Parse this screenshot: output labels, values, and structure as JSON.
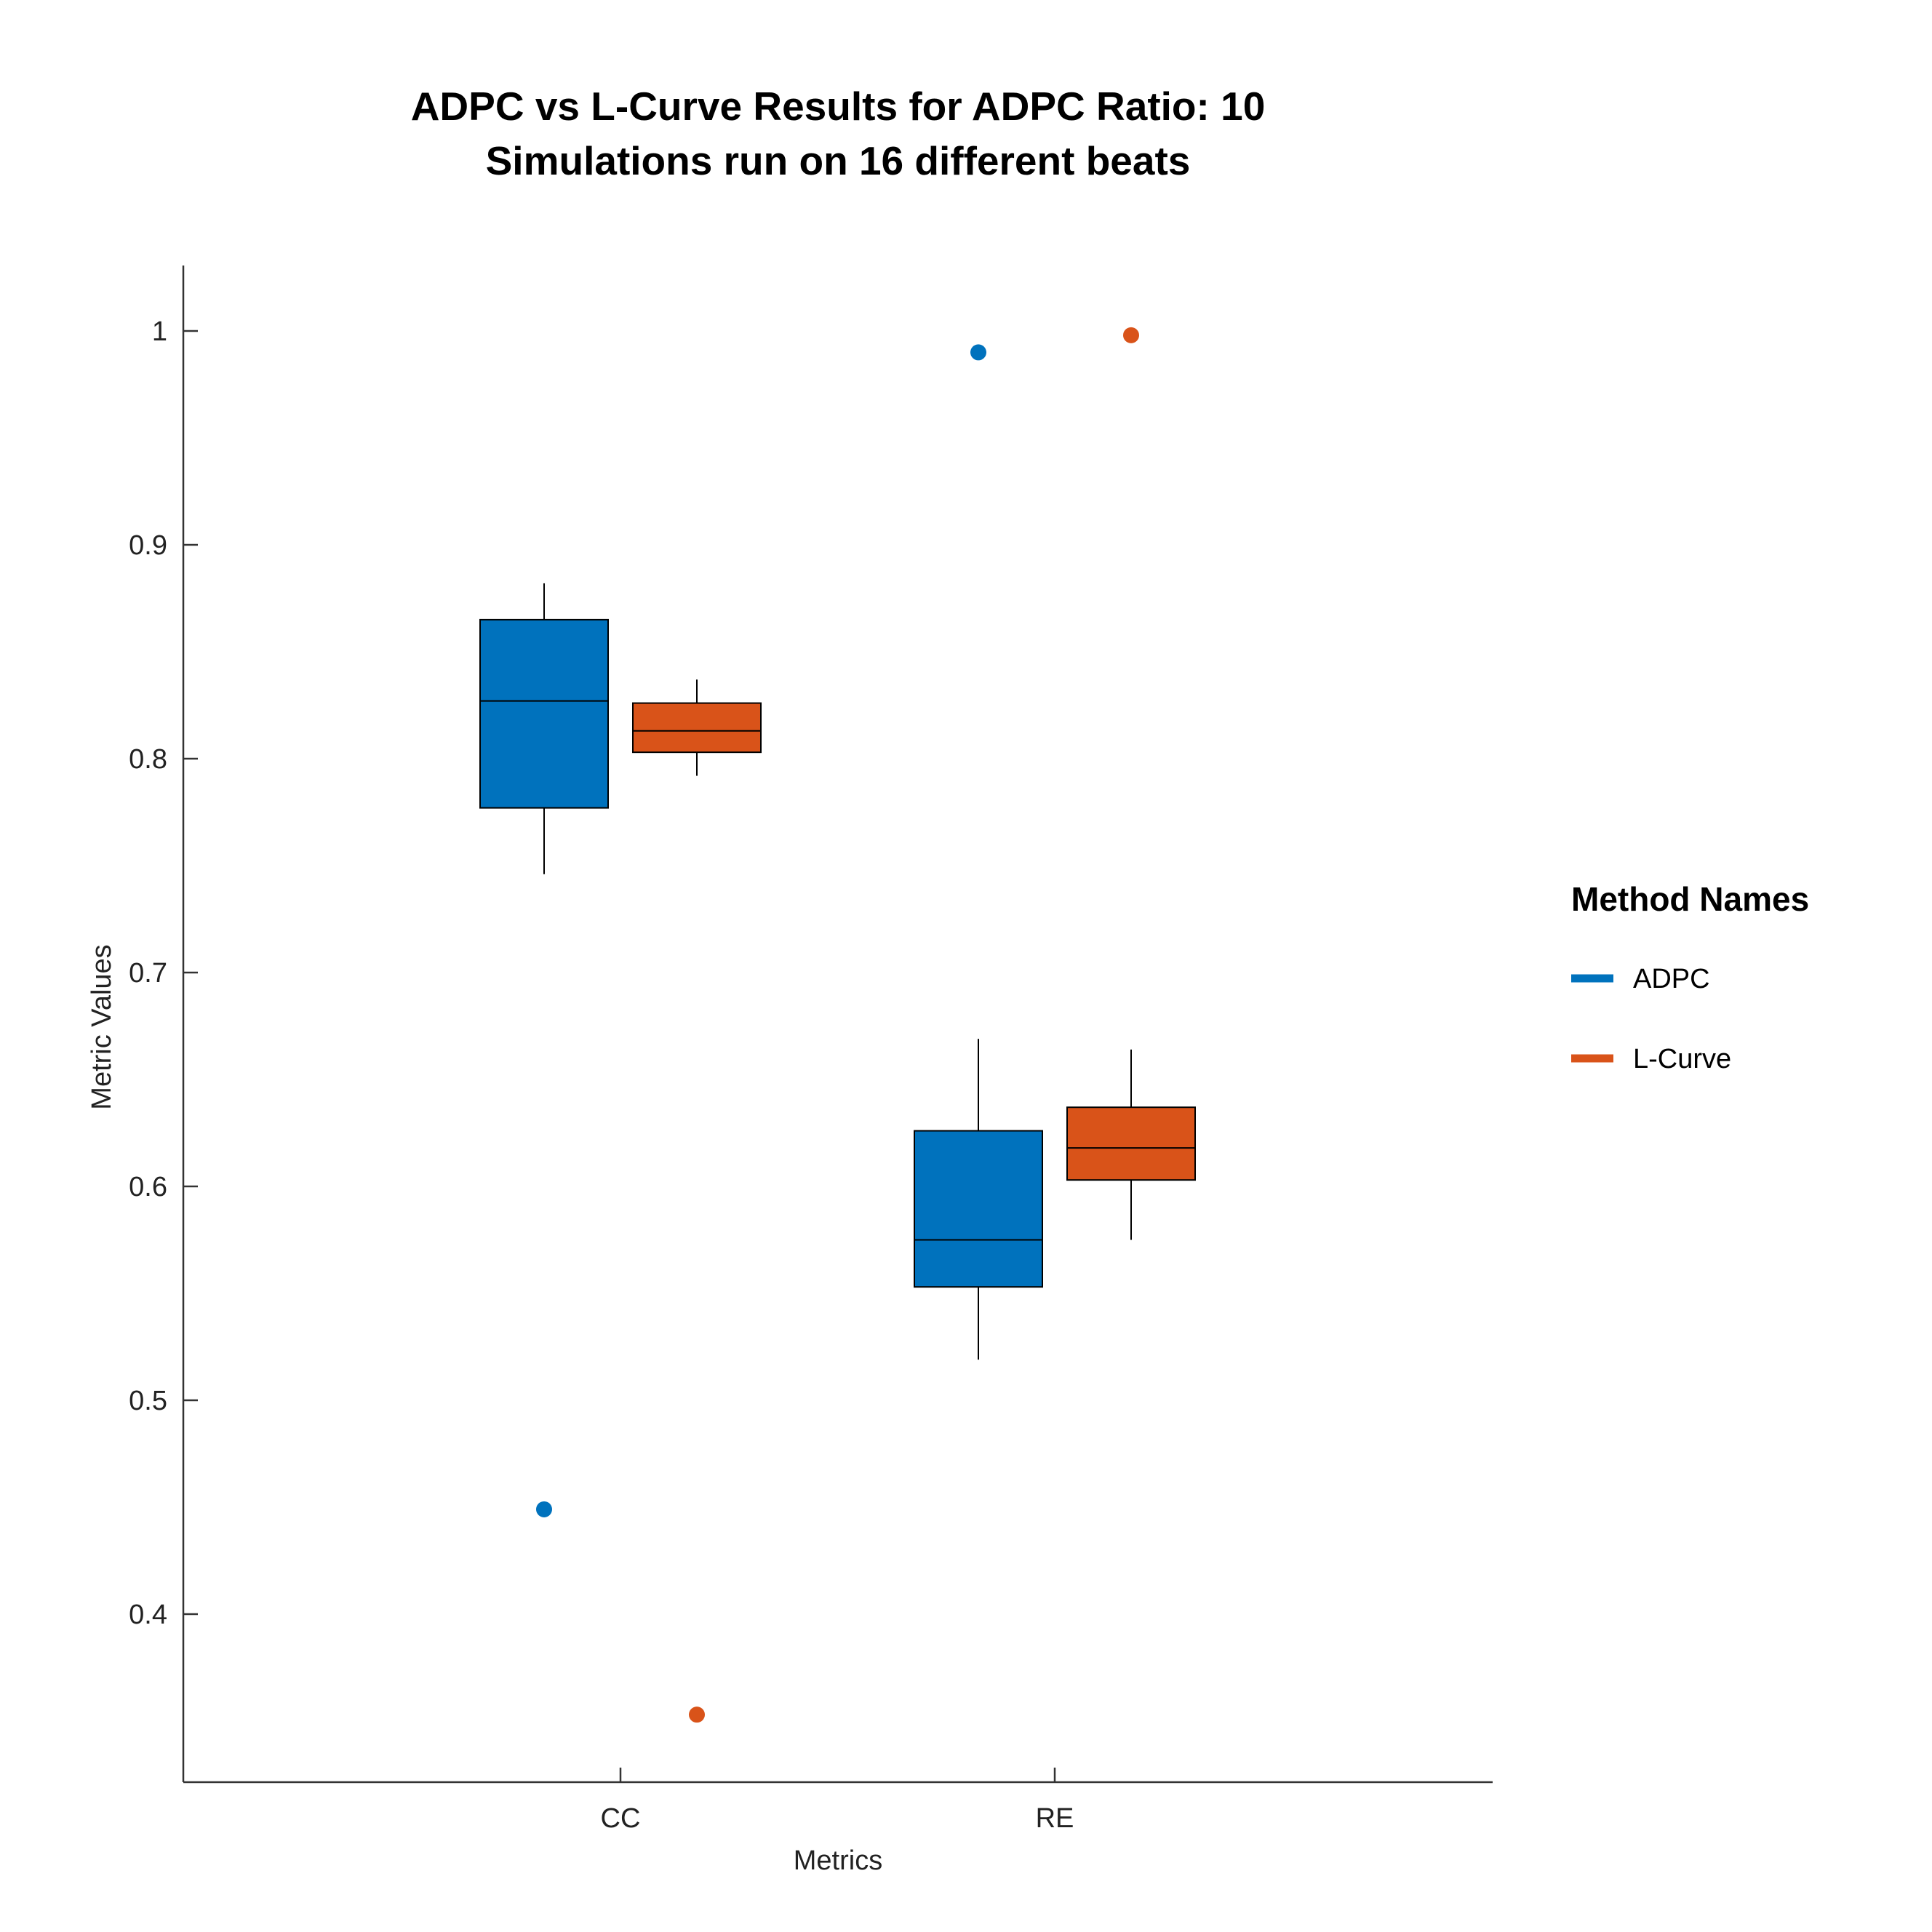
{
  "chart_data": {
    "type": "box",
    "title_lines": [
      "ADPC vs L-Curve Results for ADPC Ratio: 10",
      "Simulations run on 16 different beats"
    ],
    "xlabel": "Metrics",
    "ylabel": "Metric Values",
    "categories": [
      "CC",
      "RE"
    ],
    "ylim": [
      0.32,
      1.03
    ],
    "yticks": [
      0.4,
      0.5,
      0.6,
      0.7,
      0.8,
      0.9,
      1
    ],
    "ytick_labels": [
      "0.4",
      "0.5",
      "0.6",
      "0.7",
      "0.8",
      "0.9",
      "1"
    ],
    "grid": false,
    "legend": {
      "title": "Method Names",
      "position": "right"
    },
    "series": [
      {
        "name": "ADPC",
        "color": "#0072BD",
        "boxes": [
          {
            "category": "CC",
            "whisker_low": 0.746,
            "q1": 0.777,
            "median": 0.827,
            "q3": 0.865,
            "whisker_high": 0.882,
            "outliers": [
              0.449
            ]
          },
          {
            "category": "RE",
            "whisker_low": 0.519,
            "q1": 0.553,
            "median": 0.575,
            "q3": 0.626,
            "whisker_high": 0.669,
            "outliers": [
              0.99
            ]
          }
        ]
      },
      {
        "name": "L-Curve",
        "color": "#D95319",
        "boxes": [
          {
            "category": "CC",
            "whisker_low": 0.792,
            "q1": 0.803,
            "median": 0.813,
            "q3": 0.826,
            "whisker_high": 0.837,
            "outliers": [
              0.353
            ]
          },
          {
            "category": "RE",
            "whisker_low": 0.575,
            "q1": 0.603,
            "median": 0.618,
            "q3": 0.637,
            "whisker_high": 0.664,
            "outliers": [
              0.998
            ]
          }
        ]
      }
    ]
  }
}
